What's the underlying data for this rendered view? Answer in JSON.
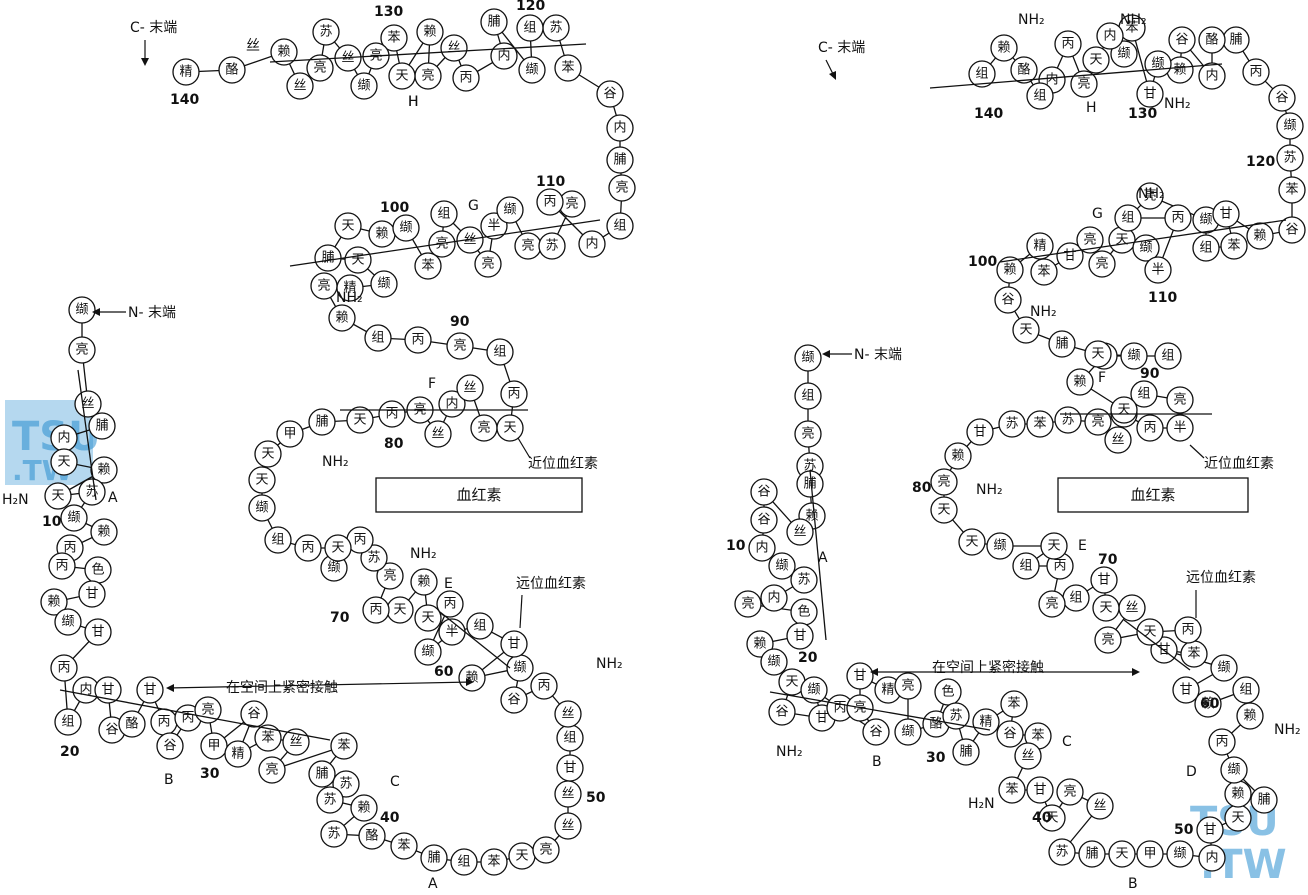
{
  "labels": {
    "c_terminus": "C- 末端",
    "n_terminus": "N- 末端",
    "proximal_heme": "近位血红素",
    "distal_heme": "远位血红素",
    "heme": "血红素",
    "close_contact": "在空间上紧密接触",
    "nh2": "NH₂",
    "h2n": "H₂N"
  },
  "watermark": {
    "left_top": "TSU",
    "left_bottom": ".TW",
    "right_top": "TSU",
    "right_bottom": ".TW"
  },
  "left_chain": [
    "缬",
    "亮",
    "丝",
    "脯",
    "内",
    "天",
    "赖",
    "天",
    "苏",
    "缬",
    "赖",
    "丙",
    "丙",
    "色",
    "甘",
    "赖",
    "缬",
    "甘",
    "丙",
    "组",
    "内",
    "甘",
    "谷",
    "酪",
    "甘",
    "丙",
    "谷",
    "丙",
    "亮",
    "甲",
    "谷",
    "精",
    "苯",
    "丝",
    "亮",
    "苯",
    "脯",
    "苏",
    "苏",
    "赖",
    "苏",
    "酪",
    "苯",
    "脯",
    "组",
    "苯",
    "天",
    "亮",
    "丝",
    "50",
    "甘",
    "组",
    "丝",
    "丙",
    "谷",
    "缬",
    "赖",
    "甘",
    "组",
    "半",
    "缬",
    "丙",
    "天",
    "赖",
    "天",
    "丙",
    "亮",
    "苏",
    "丙",
    "缬",
    "天",
    "丙",
    "组",
    "缬",
    "天",
    "天",
    "甲",
    "脯",
    "天",
    "丙",
    "亮",
    "丝",
    "内",
    "丝",
    "亮",
    "天",
    "丙",
    "组",
    "亮",
    "丙",
    "组",
    "赖",
    "亮",
    "精",
    "缬",
    "天",
    "脯",
    "天",
    "赖",
    "缬",
    "苯",
    "亮",
    "组",
    "丝",
    "亮",
    "半",
    "缬",
    "亮",
    "苏",
    "亮",
    "丙",
    "内",
    "组",
    "亮",
    "脯",
    "内",
    "谷",
    "苯",
    "苏",
    "组",
    "缬",
    "脯",
    "内",
    "丙",
    "丝",
    "亮",
    "赖",
    "天",
    "苯",
    "亮",
    "缬",
    "丝",
    "苏",
    "亮",
    "丝",
    "赖",
    "酪",
    "精"
  ],
  "right_chain": [
    "缬",
    "组",
    "亮",
    "苏",
    "脯",
    "赖",
    "丝",
    "谷",
    "谷",
    "内",
    "缬",
    "苏",
    "内",
    "亮",
    "色",
    "甘",
    "赖",
    "缬",
    "天",
    "谷",
    "甘",
    "缬",
    "丙",
    "谷",
    "亮",
    "甘",
    "精",
    "亮",
    "缬",
    "酪",
    "色",
    "苏",
    "脯",
    "精",
    "苯",
    "谷",
    "苯",
    "丝",
    "苯",
    "甘",
    "天",
    "亮",
    "丝",
    "苏",
    "脯",
    "天",
    "甲",
    "缬",
    "内",
    "甘",
    "天",
    "赖",
    "脯",
    "缬",
    "丙",
    "赖",
    "组",
    "赖",
    "甘",
    "缬",
    "甘",
    "苯",
    "丙",
    "天",
    "亮",
    "丝",
    "天",
    "甘",
    "组",
    "亮",
    "丙",
    "组",
    "天",
    "缬",
    "天",
    "天",
    "亮",
    "赖",
    "甘",
    "苏",
    "苯",
    "苏",
    "亮",
    "丝",
    "谷",
    "丙",
    "半",
    "亮",
    "组",
    "天",
    "赖",
    "亮",
    "组",
    "缬",
    "天",
    "脯",
    "天",
    "谷",
    "赖",
    "精",
    "苯",
    "甘",
    "亮",
    "亮",
    "天",
    "缬",
    "半",
    "丙",
    "组",
    "亮",
    "缬",
    "组",
    "苯",
    "甘",
    "赖",
    "谷",
    "苯",
    "苏",
    "缬",
    "谷",
    "丙",
    "脯",
    "酪",
    "内",
    "谷",
    "赖",
    "缬",
    "甘",
    "苯",
    "缬",
    "内",
    "天",
    "亮",
    "丙",
    "内",
    "组",
    "酪",
    "赖",
    "组"
  ],
  "helix_labels_left": [
    "A",
    "B",
    "C",
    "E",
    "F",
    "G",
    "H",
    "A"
  ],
  "helix_labels_right": [
    "A",
    "B",
    "C",
    "D",
    "E",
    "F",
    "G",
    "H",
    "B"
  ],
  "numbers_left": [
    "10",
    "20",
    "30",
    "40",
    "50",
    "60",
    "70",
    "80",
    "90",
    "100",
    "110",
    "120",
    "130",
    "140"
  ],
  "numbers_right": [
    "10",
    "20",
    "30",
    "40",
    "50",
    "60",
    "70",
    "80",
    "90",
    "100",
    "110",
    "120",
    "130",
    "140"
  ]
}
